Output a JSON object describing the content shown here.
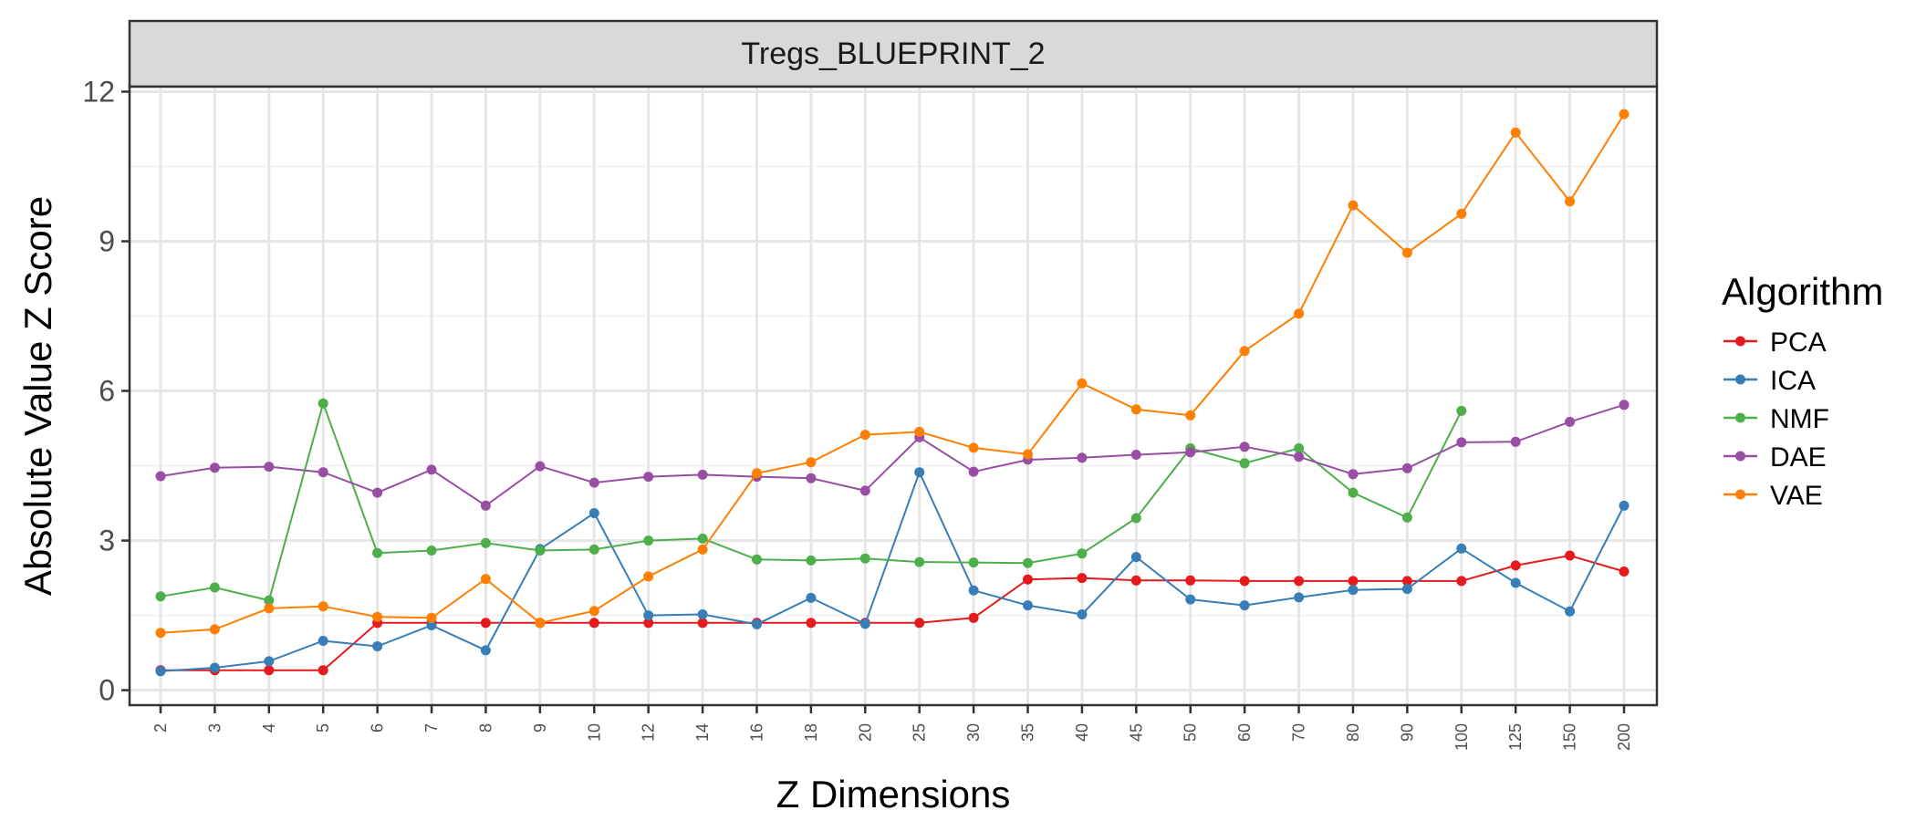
{
  "chart_data": {
    "type": "line",
    "panel_title": "Tregs_BLUEPRINT_2",
    "xlabel": "Z Dimensions",
    "ylabel": "Absolute Value Z Score",
    "x": [
      "2",
      "3",
      "4",
      "5",
      "6",
      "7",
      "8",
      "9",
      "10",
      "12",
      "14",
      "16",
      "18",
      "20",
      "25",
      "30",
      "35",
      "40",
      "45",
      "50",
      "60",
      "70",
      "80",
      "90",
      "100",
      "125",
      "150",
      "200"
    ],
    "ylim": [
      -0.3,
      12.1
    ],
    "yticks": [
      0,
      3,
      6,
      9,
      12
    ],
    "grid": true,
    "legend": {
      "title": "Algorithm",
      "position": "right"
    },
    "series": [
      {
        "name": "PCA",
        "color": "#e41a1c",
        "values": [
          0.4,
          0.4,
          0.4,
          0.4,
          1.35,
          1.35,
          1.35,
          1.35,
          1.35,
          1.35,
          1.35,
          1.35,
          1.35,
          1.35,
          1.35,
          1.45,
          2.22,
          2.25,
          2.2,
          2.2,
          2.19,
          2.19,
          2.19,
          2.19,
          2.19,
          2.5,
          2.7,
          2.38
        ]
      },
      {
        "name": "ICA",
        "color": "#377eb8",
        "values": [
          0.38,
          0.45,
          0.58,
          0.99,
          0.88,
          1.3,
          0.8,
          2.83,
          3.55,
          1.5,
          1.52,
          1.32,
          1.85,
          1.33,
          4.37,
          2.0,
          1.7,
          1.52,
          2.67,
          1.82,
          1.7,
          1.86,
          2.01,
          2.03,
          2.84,
          2.15,
          1.58,
          3.7
        ]
      },
      {
        "name": "NMF",
        "color": "#4daf4a",
        "values": [
          1.88,
          2.06,
          1.8,
          5.75,
          2.75,
          2.8,
          2.95,
          2.8,
          2.82,
          3.0,
          3.04,
          2.62,
          2.6,
          2.64,
          2.57,
          2.56,
          2.55,
          2.74,
          3.45,
          4.85,
          4.55,
          4.85,
          3.96,
          3.46,
          5.6,
          null,
          null,
          null
        ]
      },
      {
        "name": "DAE",
        "color": "#984ea3",
        "values": [
          4.29,
          4.46,
          4.48,
          4.37,
          3.96,
          4.42,
          3.7,
          4.49,
          4.16,
          4.28,
          4.32,
          4.28,
          4.25,
          4.0,
          5.07,
          4.38,
          4.62,
          4.66,
          4.72,
          4.77,
          4.88,
          4.68,
          4.33,
          4.45,
          4.97,
          4.98,
          5.38,
          5.72
        ]
      },
      {
        "name": "VAE",
        "color": "#ff7f00",
        "values": [
          1.15,
          1.22,
          1.64,
          1.68,
          1.47,
          1.45,
          2.23,
          1.35,
          1.59,
          2.28,
          2.82,
          4.35,
          4.57,
          5.12,
          5.18,
          4.86,
          4.73,
          6.15,
          5.63,
          5.51,
          6.8,
          7.55,
          9.72,
          8.77,
          9.55,
          11.18,
          9.8,
          11.55
        ]
      }
    ]
  }
}
